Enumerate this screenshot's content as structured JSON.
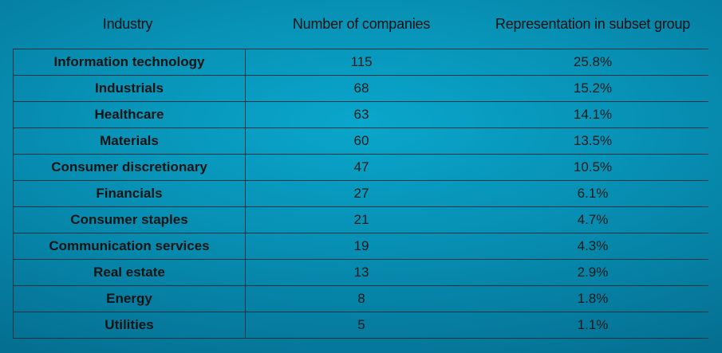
{
  "headers": {
    "industry": "Industry",
    "count": "Number of companies",
    "representation": "Representation in subset group"
  },
  "rows": [
    {
      "industry": "Information technology",
      "count": "115",
      "representation": "25.8%"
    },
    {
      "industry": "Industrials",
      "count": "68",
      "representation": "15.2%"
    },
    {
      "industry": "Healthcare",
      "count": "63",
      "representation": "14.1%"
    },
    {
      "industry": "Materials",
      "count": "60",
      "representation": "13.5%"
    },
    {
      "industry": "Consumer discretionary",
      "count": "47",
      "representation": "10.5%"
    },
    {
      "industry": "Financials",
      "count": "27",
      "representation": "6.1%"
    },
    {
      "industry": "Consumer staples",
      "count": "21",
      "representation": "4.7%"
    },
    {
      "industry": "Communication services",
      "count": "19",
      "representation": "4.3%"
    },
    {
      "industry": "Real estate",
      "count": "13",
      "representation": "2.9%"
    },
    {
      "industry": "Energy",
      "count": "8",
      "representation": "1.8%"
    },
    {
      "industry": "Utilities",
      "count": "5",
      "representation": "1.1%"
    }
  ],
  "colors": {
    "background_center": "#0aa6cb",
    "background_edge": "#056f91",
    "grid_line": "#1a3540",
    "text": "#141414"
  }
}
